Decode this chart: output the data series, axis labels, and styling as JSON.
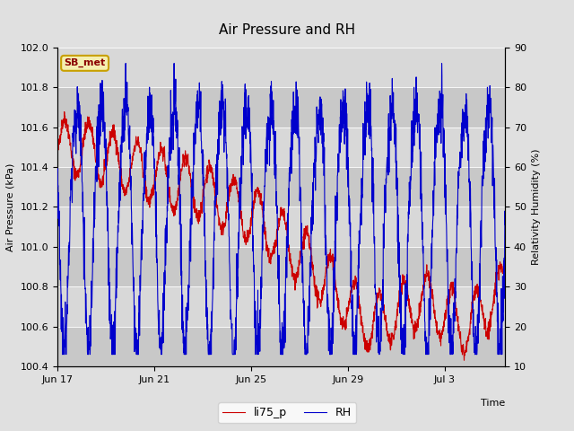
{
  "title": "Air Pressure and RH",
  "xlabel": "Time",
  "ylabel_left": "Air Pressure (kPa)",
  "ylabel_right": "Relativity Humidity (%)",
  "station_label": "SB_met",
  "ylim_left": [
    100.4,
    102.0
  ],
  "ylim_right": [
    10,
    90
  ],
  "yticks_left": [
    100.4,
    100.6,
    100.8,
    101.0,
    101.2,
    101.4,
    101.6,
    101.8,
    102.0
  ],
  "yticks_right": [
    10,
    20,
    30,
    40,
    50,
    60,
    70,
    80,
    90
  ],
  "xtick_labels": [
    "Jun 17",
    "Jun 21",
    "Jun 25",
    "Jun 29",
    "Jul 3"
  ],
  "bg_color": "#e0e0e0",
  "plot_bg_color": "#d0d0d0",
  "line_color_pressure": "#cc0000",
  "line_color_rh": "#0000cc",
  "legend_label_pressure": "li75_p",
  "legend_label_rh": "RH",
  "num_points": 2000
}
